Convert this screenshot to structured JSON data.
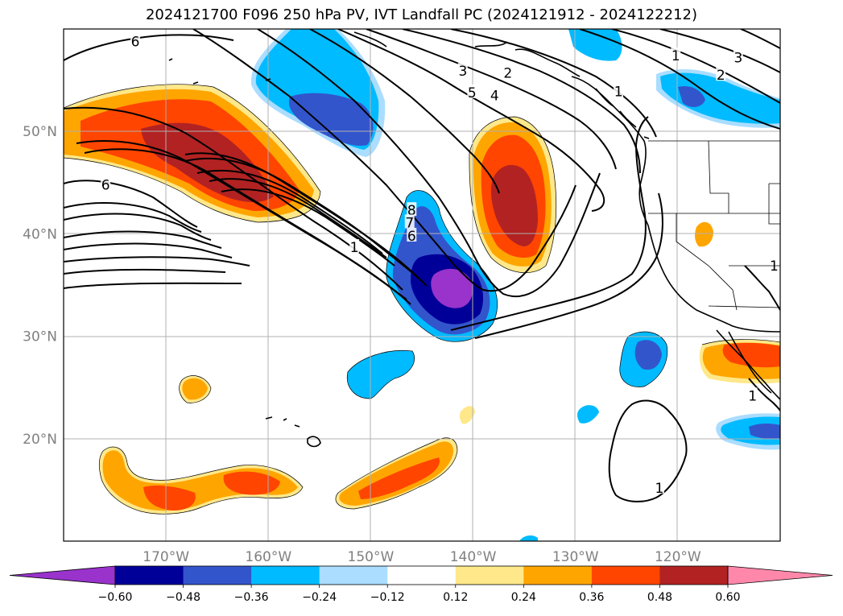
{
  "title": "2024121700 F096 250 hPa PV, IVT Landfall PC (2024121912 - 2024122212)",
  "map": {
    "lon_range": [
      -180,
      -110
    ],
    "lat_range": [
      10,
      60
    ],
    "lat_ticks": [
      {
        "value": 50,
        "label": "50°N"
      },
      {
        "value": 40,
        "label": "40°N"
      },
      {
        "value": 30,
        "label": "30°N"
      },
      {
        "value": 20,
        "label": "20°N"
      }
    ],
    "lon_ticks": [
      {
        "value": -170,
        "label": "170°W"
      },
      {
        "value": -160,
        "label": "160°W"
      },
      {
        "value": -150,
        "label": "150°W"
      },
      {
        "value": -140,
        "label": "140°W"
      },
      {
        "value": -130,
        "label": "130°W"
      },
      {
        "value": -120,
        "label": "120°W"
      }
    ],
    "gridlines": true,
    "contour_labels": [
      {
        "text": "6",
        "lon": -173,
        "lat": 58.8
      },
      {
        "text": "6",
        "lon": -175.9,
        "lat": 44.8
      },
      {
        "text": "3",
        "lon": -141,
        "lat": 55.9
      },
      {
        "text": "2",
        "lon": -136.6,
        "lat": 55.7
      },
      {
        "text": "5",
        "lon": -140.1,
        "lat": 53.8
      },
      {
        "text": "4",
        "lon": -137.9,
        "lat": 53.5
      },
      {
        "text": "1",
        "lon": -125.8,
        "lat": 53.9
      },
      {
        "text": "1",
        "lon": -120.2,
        "lat": 57.4
      },
      {
        "text": "3",
        "lon": -114.1,
        "lat": 57.2
      },
      {
        "text": "2",
        "lon": -115.8,
        "lat": 55.5
      },
      {
        "text": "1",
        "lon": -151.6,
        "lat": 38.7
      },
      {
        "text": "8",
        "lon": -146,
        "lat": 42.3
      },
      {
        "text": "7",
        "lon": -146.2,
        "lat": 41.1
      },
      {
        "text": "6",
        "lon": -146,
        "lat": 39.8
      },
      {
        "text": "1",
        "lon": -121.8,
        "lat": 15.2
      },
      {
        "text": "1",
        "lon": -110.6,
        "lat": 36.9
      },
      {
        "text": "1",
        "lon": -112.7,
        "lat": 24.2
      }
    ]
  },
  "colorbar": {
    "ticks": [
      "−0.60",
      "−0.48",
      "−0.36",
      "−0.24",
      "−0.12",
      "0.12",
      "0.24",
      "0.36",
      "0.48",
      "0.60"
    ],
    "colors": [
      "#9933cc",
      "#000099",
      "#3355cc",
      "#00bbff",
      "#aaddff",
      "#ffffff",
      "#ffe88a",
      "#ffa500",
      "#ff4500",
      "#b22222",
      "#ff88aa"
    ],
    "extend": "both"
  }
}
